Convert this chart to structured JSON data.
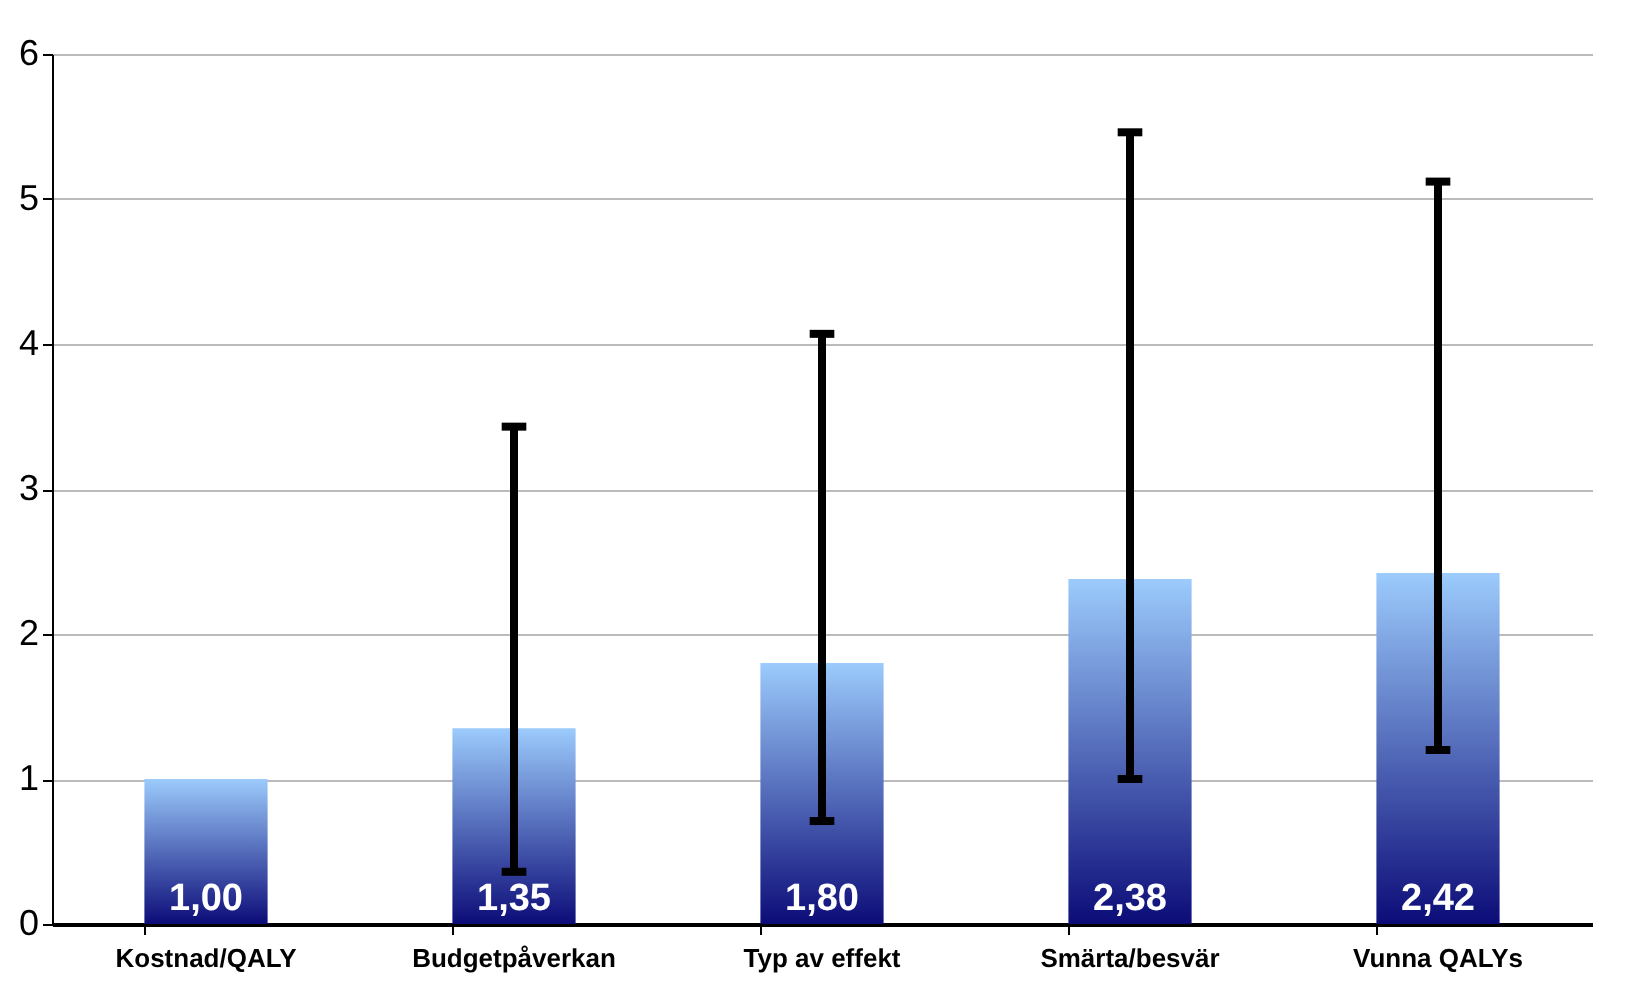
{
  "chart_data": {
    "type": "bar",
    "categories": [
      "Kostnad/QALY",
      "Budgetpåverkan",
      "Typ av effekt",
      "Smärta/besvär",
      "Vunna QALYs"
    ],
    "series": [
      {
        "color": "#9ccbfc",
        "values": [
          1.0,
          1.35,
          1.8,
          2.38,
          2.42
        ],
        "value_labels": [
          "1,00",
          "1,35",
          "1,80",
          "2,38",
          "2,42"
        ],
        "errors": [
          null,
          [
            0.36,
            3.43
          ],
          [
            0.71,
            4.07
          ],
          [
            1.0,
            5.46
          ],
          [
            1.2,
            5.12
          ]
        ]
      }
    ],
    "ylim": [
      0,
      6
    ],
    "yticks": [
      0,
      1,
      2,
      3,
      4,
      5,
      6
    ],
    "grid": "y"
  }
}
